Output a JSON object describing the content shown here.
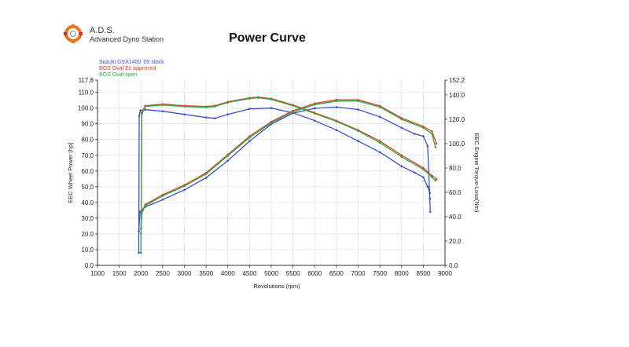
{
  "header": {
    "logo_abbrev": "A.D.S.",
    "logo_name": "Advanced Dyno Station",
    "title": "Power Curve"
  },
  "colors": {
    "series_1": "#3a4fd0",
    "series_2": "#e03a2e",
    "series_3": "#2fae3a",
    "logo_orange": "#e8731c",
    "logo_red": "#c8341e",
    "grid": "#b8b8b8",
    "axis": "#333333"
  },
  "chart_data": {
    "type": "line",
    "title": "Power Curve",
    "xlabel": "Revolutions (rpm)",
    "ylabel_left": "EEC Wheel Power (hp)",
    "ylabel_right": "EEC Engine Torque-Loss(Nm)",
    "xlim": [
      1000,
      9000
    ],
    "ylim_left": [
      0,
      117.8
    ],
    "ylim_right": [
      0,
      152.2
    ],
    "x_ticks": [
      "1000",
      "1500",
      "2000",
      "2500",
      "3000",
      "3500",
      "4000",
      "4500",
      "5000",
      "5500",
      "6000",
      "6500",
      "7000",
      "7500",
      "8000",
      "8500",
      "9000"
    ],
    "y_left_ticks": [
      "0.0",
      "10.0",
      "20.0",
      "30.0",
      "40.0",
      "50.0",
      "60.0",
      "70.0",
      "80.0",
      "90.0",
      "100.0",
      "110.0",
      "117.8"
    ],
    "y_right_ticks": [
      "0.0",
      "20.0",
      "40.0",
      "60.0",
      "80.0",
      "100.0",
      "120.0",
      "140.0",
      "152.2"
    ],
    "legend": [
      "Suzuki GSX1400 '05 stock",
      "BOS Oval Ec approved",
      "BOS Oval open"
    ],
    "grid": true,
    "series": [
      {
        "name": "Suzuki GSX1400 '05 stock",
        "metric": "power",
        "axis": "left",
        "x": [
          1950,
          1960,
          1990,
          2100,
          2500,
          3000,
          3500,
          3700,
          4000,
          4500,
          5000,
          5500,
          6000,
          6500,
          7000,
          7500,
          8000,
          8300,
          8500,
          8600,
          8650
        ],
        "y": [
          8,
          95,
          98.5,
          99,
          98,
          96,
          94,
          93.5,
          96,
          99.5,
          100,
          97,
          92,
          86,
          79,
          72,
          63,
          59,
          56,
          50,
          46
        ]
      },
      {
        "name": "Suzuki GSX1400 '05 stock",
        "metric": "torque",
        "axis": "right",
        "x": [
          1950,
          1980,
          2100,
          2500,
          3000,
          3500,
          4000,
          4500,
          5000,
          5500,
          6000,
          6500,
          7000,
          7500,
          8000,
          8300,
          8500,
          8600,
          8650,
          8660
        ],
        "y": [
          28,
          44,
          48,
          54,
          62,
          72,
          86,
          102,
          116,
          125,
          129,
          130,
          128,
          122,
          113,
          108,
          106,
          98,
          55,
          44
        ]
      },
      {
        "name": "BOS Oval Ec approved",
        "metric": "power",
        "axis": "left",
        "x": [
          2000,
          2020,
          2100,
          2500,
          3000,
          3500,
          3700,
          4000,
          4500,
          4700,
          5000,
          5500,
          6000,
          6500,
          7000,
          7500,
          8000,
          8500,
          8700,
          8800
        ],
        "y": [
          8,
          97,
          101.5,
          102.5,
          101.5,
          101,
          101.5,
          104,
          106.5,
          107,
          106,
          102,
          97,
          92,
          86,
          79,
          70,
          62,
          57,
          55
        ]
      },
      {
        "name": "BOS Oval Ec approved",
        "metric": "torque",
        "axis": "right",
        "x": [
          2000,
          2020,
          2100,
          2500,
          3000,
          3500,
          4000,
          4500,
          5000,
          5500,
          6000,
          6500,
          7000,
          7500,
          8000,
          8500,
          8700,
          8800
        ],
        "y": [
          30,
          44,
          50,
          58,
          66,
          76,
          91,
          106,
          118,
          127,
          133,
          136,
          136,
          131,
          121,
          114,
          110,
          100
        ]
      },
      {
        "name": "BOS Oval open",
        "metric": "power",
        "axis": "left",
        "x": [
          2000,
          2020,
          2100,
          2500,
          3000,
          3500,
          3700,
          4000,
          4500,
          4700,
          5000,
          5500,
          6000,
          6500,
          7000,
          7500,
          8000,
          8500,
          8700,
          8780
        ],
        "y": [
          8,
          96,
          101,
          102,
          101,
          100.5,
          101,
          103.5,
          106,
          106.5,
          105.5,
          101.5,
          96.5,
          91.5,
          85.5,
          78,
          69,
          61,
          56,
          54
        ]
      },
      {
        "name": "BOS Oval open",
        "metric": "torque",
        "axis": "right",
        "x": [
          2000,
          2020,
          2100,
          2500,
          3000,
          3500,
          4000,
          4500,
          5000,
          5500,
          6000,
          6500,
          7000,
          7500,
          8000,
          8500,
          8700,
          8780
        ],
        "y": [
          26,
          43,
          49,
          57,
          65,
          75,
          90,
          105,
          117,
          126,
          132,
          135,
          135,
          130,
          120,
          113,
          108,
          97
        ]
      }
    ]
  }
}
